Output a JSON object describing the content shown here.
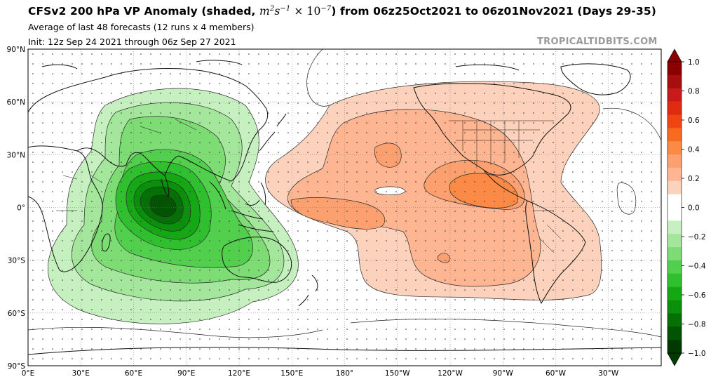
{
  "header": {
    "title_prefix": "CFSv2 200 hPa VP Anomaly (shaded, ",
    "title_units_base": "m",
    "title_units_exp1": "2",
    "title_units_mid": "s",
    "title_units_exp2": "−1",
    "title_units_scale": " × 10",
    "title_units_exp3": "−7",
    "title_suffix": ") from 06z25Oct2021 to 06z01Nov2021 (Days 29-35)",
    "subtitle1": "Average of last 48 forecasts (12 runs x 4 members)",
    "subtitle2": "Init: 12z Sep 24 2021 through 06z Sep 27 2021",
    "brand": "TROPICALTIDBITS.COM"
  },
  "map": {
    "projection": "equirectangular, 0°E centered left",
    "lon_labels": [
      "0°E",
      "30°E",
      "60°E",
      "90°E",
      "120°E",
      "150°E",
      "180°",
      "150°W",
      "120°W",
      "90°W",
      "60°W",
      "30°W"
    ],
    "lat_labels": [
      "90°N",
      "60°N",
      "30°N",
      "0°",
      "30°S",
      "60°S",
      "90°S"
    ],
    "grid": true,
    "features": [
      {
        "name": "green-negative-anomaly",
        "center": "Indian Ocean near 75°E, 0°",
        "sign": "negative",
        "min_level": -1.0
      },
      {
        "name": "orange-positive-anomaly",
        "center": "Eastern Pacific near 100°W, 10°N",
        "sign": "positive",
        "max_level": 0.6
      }
    ]
  },
  "colorbar": {
    "ticks": [
      "1.0",
      "0.8",
      "0.6",
      "0.4",
      "0.2",
      "0.0",
      "−0.2",
      "−0.4",
      "−0.6",
      "−0.8",
      "−1.0"
    ],
    "min": -1.0,
    "max": 1.0,
    "colors_top_to_bottom": [
      "#8b0000",
      "#a80e0e",
      "#c81a1a",
      "#e02a12",
      "#f04510",
      "#f86a20",
      "#fa8a45",
      "#fca070",
      "#fdb592",
      "#fdd2bd",
      "#ffffff",
      "#ffffff",
      "#c6f0c0",
      "#a4e69c",
      "#7ddc74",
      "#52cf4c",
      "#2fbf2f",
      "#14a814",
      "#0b900b",
      "#057005",
      "#025302",
      "#003a00"
    ]
  }
}
